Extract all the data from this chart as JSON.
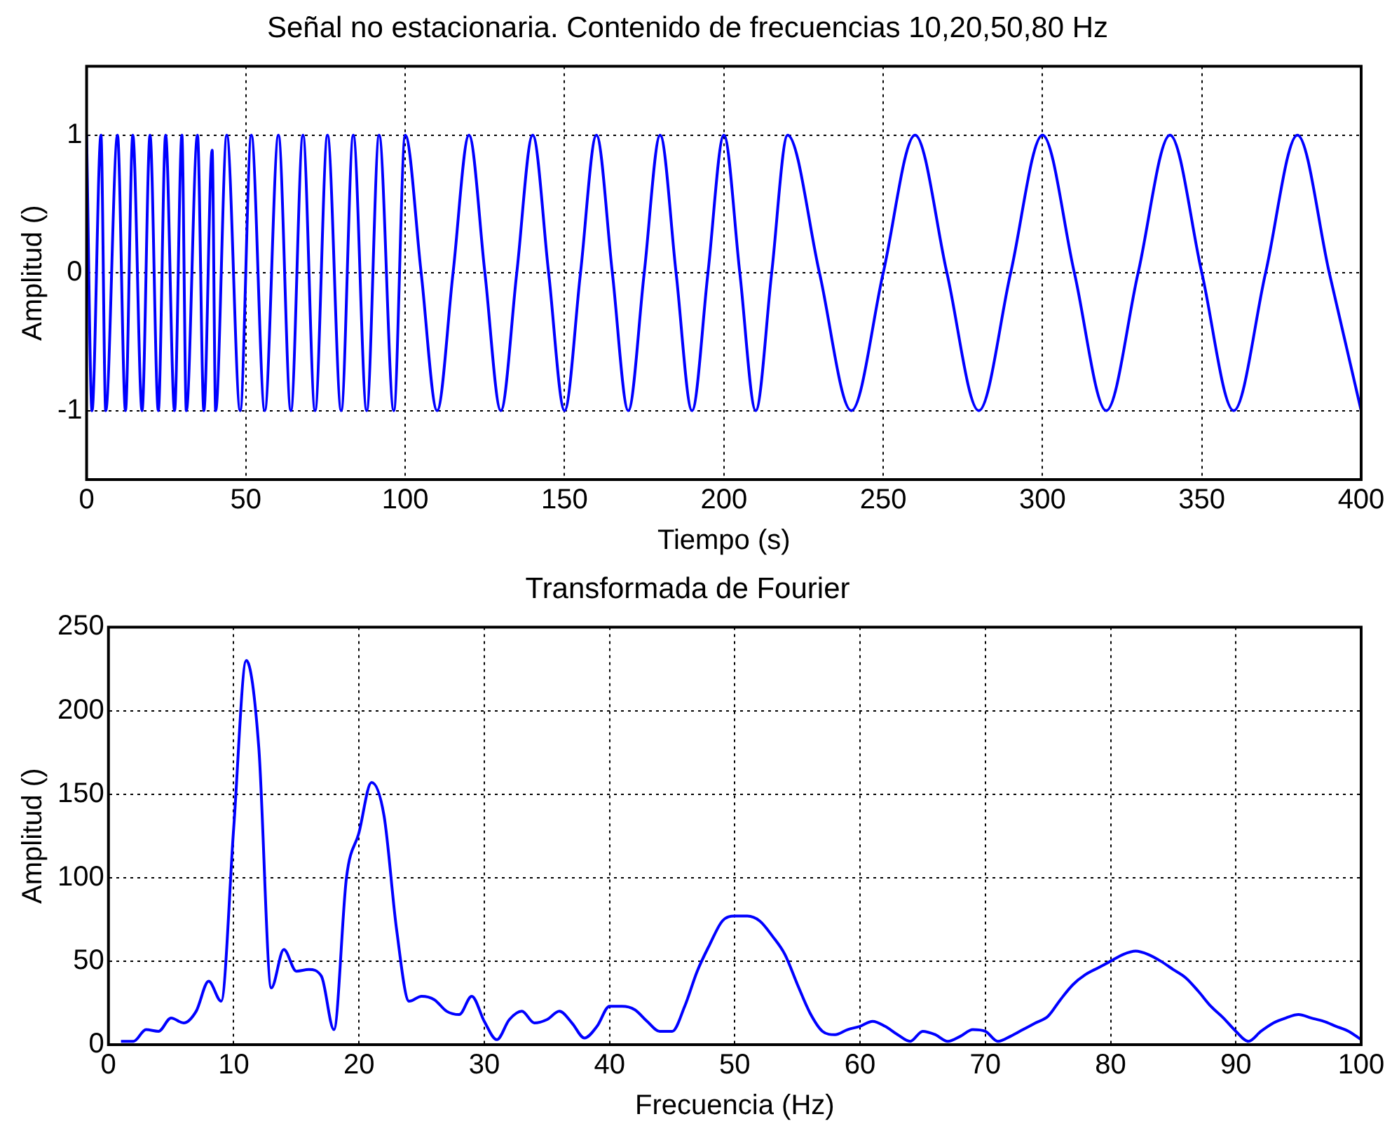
{
  "chart_data": [
    {
      "type": "line",
      "title": "Señal no estacionaria. Contenido de frecuencias 10,20,50,80 Hz",
      "xlabel": "Tiempo (s)",
      "ylabel": "Amplitud ()",
      "color": "#0000ff",
      "x": [
        0,
        1.7,
        4.5,
        6,
        9.7,
        12.2,
        14.5,
        17.4,
        19.9,
        22.5,
        24.8,
        27.6,
        29.9,
        31.3,
        34.8,
        36.8,
        39.4,
        40.5,
        44,
        48.2,
        51.7,
        55.9,
        60.2,
        64.1,
        67.9,
        71.7,
        75.6,
        79.9,
        83.7,
        87.9,
        91.8,
        96.4,
        100,
        105,
        110,
        115,
        120,
        125,
        130,
        135,
        140,
        145,
        150,
        155,
        160,
        165,
        170,
        175,
        180,
        185,
        190,
        195,
        200,
        205,
        210,
        215,
        220,
        230,
        240,
        250,
        260,
        270,
        280,
        290,
        300,
        310,
        320,
        330,
        340,
        350,
        360,
        370,
        380,
        390,
        400
      ],
      "values": [
        1,
        -1,
        1,
        -1,
        1,
        -1,
        1,
        -1,
        1,
        -1,
        1,
        -1,
        1,
        -1,
        1,
        -1,
        0.89,
        -1,
        1,
        -1,
        1,
        -1,
        1,
        -1,
        1,
        -1,
        1,
        -1,
        1,
        -1,
        1,
        -1,
        1,
        0,
        -1,
        0,
        1,
        0,
        -1,
        0,
        1,
        0,
        -1,
        0,
        1,
        0,
        -1,
        0,
        1,
        0,
        -1,
        0,
        1,
        0,
        -1,
        0,
        1,
        0,
        -1,
        0,
        1,
        0,
        -1,
        0,
        1,
        0,
        -1,
        0,
        1,
        0,
        -1,
        0,
        1,
        0,
        -1
      ],
      "xlim": [
        0,
        400
      ],
      "xticks": [
        0,
        50,
        100,
        150,
        200,
        250,
        300,
        350,
        400
      ],
      "ylim": [
        -1.5,
        1.5
      ],
      "yticks": [
        -1,
        0,
        1
      ],
      "grid": true
    },
    {
      "type": "line",
      "title": "Transformada de Fourier",
      "xlabel": "Frecuencia (Hz)",
      "ylabel": "Amplitud ()",
      "color": "#0000ff",
      "x": [
        1,
        2,
        3,
        4,
        5,
        6,
        7,
        8,
        9,
        10,
        11,
        12,
        13,
        14,
        15,
        16,
        17,
        18,
        19,
        20,
        21,
        22,
        23,
        24,
        25,
        26,
        27,
        28,
        29,
        30,
        31,
        32,
        33,
        34,
        35,
        36,
        37,
        38,
        39,
        40,
        41,
        42,
        43,
        44,
        45,
        46,
        47,
        48,
        49,
        50,
        51,
        52,
        53,
        54,
        55,
        56,
        57,
        58,
        59,
        60,
        61,
        62,
        63,
        64,
        65,
        66,
        67,
        68,
        69,
        70,
        71,
        72,
        73,
        74,
        75,
        76,
        77,
        78,
        79,
        80,
        81,
        82,
        83,
        84,
        85,
        86,
        87,
        88,
        89,
        90,
        91,
        92,
        93,
        94,
        95,
        96,
        97,
        98,
        99,
        100
      ],
      "values": [
        2,
        2,
        9,
        8,
        16,
        13,
        20,
        38,
        26,
        130,
        230,
        178,
        34,
        57,
        44,
        45,
        41,
        9,
        100,
        127,
        157,
        137,
        69,
        26,
        29,
        27,
        20,
        18,
        29,
        14,
        3,
        15,
        20,
        13,
        15,
        20,
        13,
        4,
        11,
        23,
        23,
        21,
        14,
        8,
        8,
        23,
        44,
        60,
        74,
        77,
        77,
        74,
        65,
        54,
        36,
        19,
        8,
        6,
        9,
        11,
        14,
        11,
        6,
        2,
        8,
        6,
        2,
        5,
        9,
        8,
        2,
        5,
        9,
        13,
        17,
        27,
        36,
        42,
        46,
        50,
        54,
        56,
        54,
        50,
        45,
        40,
        32,
        23,
        16,
        8,
        2,
        8,
        13,
        16,
        18,
        16,
        14,
        11,
        8,
        3
      ],
      "xlim": [
        0,
        100
      ],
      "xticks": [
        0,
        10,
        20,
        30,
        40,
        50,
        60,
        70,
        80,
        90,
        100
      ],
      "ylim": [
        0,
        250
      ],
      "yticks": [
        0,
        50,
        100,
        150,
        200,
        250
      ],
      "grid": true
    }
  ]
}
